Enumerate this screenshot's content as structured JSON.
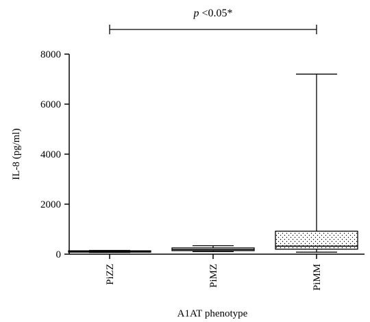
{
  "chart_data": {
    "type": "box",
    "xlabel": "A1AT phenotype",
    "ylabel": "IL-8 (pg/ml)",
    "ylim": [
      0,
      8000
    ],
    "yticks": [
      0,
      2000,
      4000,
      6000,
      8000
    ],
    "categories": [
      "PiZZ",
      "PiMZ",
      "PiMM"
    ],
    "boxes": [
      {
        "category": "PiZZ",
        "min": 70,
        "q1": 95,
        "median": 110,
        "q3": 135,
        "max": 150,
        "fill": "solid-dark"
      },
      {
        "category": "PiMZ",
        "min": 100,
        "q1": 140,
        "median": 185,
        "q3": 250,
        "max": 340,
        "fill": "hatched"
      },
      {
        "category": "PiMM",
        "min": 80,
        "q1": 200,
        "median": 320,
        "q3": 920,
        "max": 7200,
        "fill": "dotted"
      }
    ],
    "significance": {
      "text": "p <0.05*",
      "p_label": "p",
      "rest_label": " <0.05*",
      "from": "PiZZ",
      "to": "PiMM"
    }
  },
  "style": {
    "axis_color": "#000000",
    "box_stroke": "#000000"
  }
}
